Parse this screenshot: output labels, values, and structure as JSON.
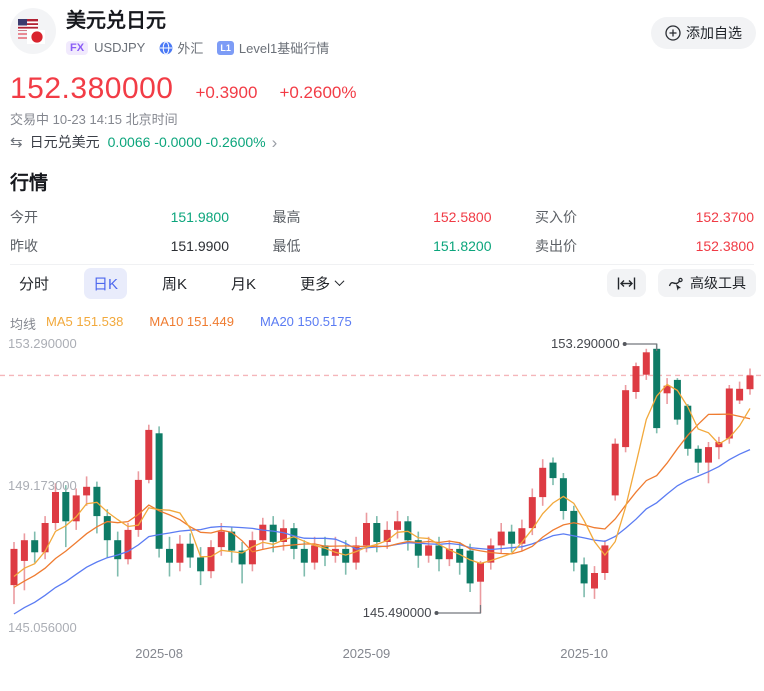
{
  "header": {
    "title": "美元兑日元",
    "fx_badge": "FX",
    "symbol": "USDJPY",
    "market": "外汇",
    "l1_badge": "L1",
    "level_label": "Level1基础行情",
    "add_button": "添加自选"
  },
  "price": {
    "last": "152.380000",
    "change": "+0.3900",
    "change_pct": "+0.2600%",
    "status": "交易中 10-23 14:15 北京时间"
  },
  "inverse": {
    "name": "日元兑美元",
    "values": "0.0066 -0.0000 -0.2600%",
    "chevron": "›",
    "swap_icon": "⇆"
  },
  "quote": {
    "section_title": "行情",
    "items": [
      {
        "label": "今开",
        "value": "151.9800",
        "tone": "green"
      },
      {
        "label": "最高",
        "value": "152.5800",
        "tone": "red"
      },
      {
        "label": "买入价",
        "value": "152.3700",
        "tone": "red"
      },
      {
        "label": "昨收",
        "value": "151.9900",
        "tone": "dark"
      },
      {
        "label": "最低",
        "value": "151.8200",
        "tone": "green"
      },
      {
        "label": "卖出价",
        "value": "152.3800",
        "tone": "red"
      }
    ]
  },
  "tabs": [
    {
      "label": "分时",
      "active": false
    },
    {
      "label": "日K",
      "active": true
    },
    {
      "label": "周K",
      "active": false
    },
    {
      "label": "月K",
      "active": false
    },
    {
      "label": "更多",
      "active": false
    }
  ],
  "tools": {
    "advanced": "高级工具"
  },
  "ma_legend": {
    "title": "均线",
    "ma5": "MA5 151.538",
    "ma10": "MA10 151.449",
    "ma20": "MA20 150.5175"
  },
  "chart_data": {
    "type": "candlestick",
    "current_price": 152.38,
    "y_axis": [
      {
        "price": 153.29,
        "label": "153.290000"
      },
      {
        "price": 149.173,
        "label": "149.173000"
      },
      {
        "price": 145.056,
        "label": "145.056000"
      }
    ],
    "x_axis": [
      {
        "index": 14,
        "label": "2025-08"
      },
      {
        "index": 34,
        "label": "2025-09"
      },
      {
        "index": 55,
        "label": "2025-10"
      }
    ],
    "annotations": [
      {
        "label": "153.290000",
        "index": 62,
        "price": 153.29,
        "anchor": "high"
      },
      {
        "label": "145.490000",
        "index": 45,
        "price": 145.49,
        "anchor": "low"
      }
    ],
    "colors": {
      "up": "#dd3b43",
      "up_wick": "#eb9ba0",
      "down": "#0e7b66",
      "down_wick": "#7fbcae",
      "ma5": "#f2a93c",
      "ma10": "#ef7c31",
      "ma20": "#5b7cf3",
      "price_line": "#f5b6ba",
      "connector": "#75787e"
    },
    "pre_closes": [
      143.9,
      144.2,
      144.0,
      144.5,
      144.8,
      144.6,
      145.0,
      145.3,
      145.1,
      145.5,
      145.8,
      145.6,
      146.0,
      146.2,
      146.0,
      146.4,
      146.6,
      146.3,
      146.1
    ],
    "candles": [
      [
        146.3,
        147.35,
        147.55,
        145.75
      ],
      [
        147.0,
        147.6,
        147.8,
        146.15
      ],
      [
        147.6,
        147.25,
        147.85,
        146.95
      ],
      [
        147.25,
        148.1,
        148.3,
        147.05
      ],
      [
        148.1,
        149.0,
        149.25,
        147.9
      ],
      [
        149.0,
        148.15,
        149.2,
        147.4
      ],
      [
        148.15,
        148.9,
        149.1,
        147.9
      ],
      [
        148.9,
        149.15,
        149.45,
        148.6
      ],
      [
        149.15,
        148.3,
        149.3,
        147.8
      ],
      [
        148.3,
        147.6,
        148.5,
        147.1
      ],
      [
        147.6,
        147.05,
        147.85,
        146.55
      ],
      [
        147.05,
        147.9,
        148.1,
        146.9
      ],
      [
        147.9,
        149.35,
        149.6,
        147.7
      ],
      [
        149.35,
        150.8,
        150.95,
        149.25
      ],
      [
        150.7,
        147.35,
        150.9,
        147.1
      ],
      [
        147.35,
        146.95,
        147.7,
        146.55
      ],
      [
        146.95,
        147.5,
        147.75,
        146.7
      ],
      [
        147.5,
        147.1,
        147.8,
        146.8
      ],
      [
        147.1,
        146.7,
        147.4,
        146.3
      ],
      [
        146.7,
        147.4,
        147.6,
        146.5
      ],
      [
        147.4,
        147.85,
        148.1,
        147.15
      ],
      [
        147.85,
        147.3,
        148.0,
        146.95
      ],
      [
        147.3,
        146.9,
        147.55,
        146.35
      ],
      [
        146.9,
        147.6,
        147.85,
        146.7
      ],
      [
        147.6,
        148.05,
        148.25,
        147.35
      ],
      [
        148.05,
        147.55,
        148.3,
        147.25
      ],
      [
        147.55,
        147.95,
        148.2,
        147.3
      ],
      [
        147.95,
        147.35,
        148.1,
        147.05
      ],
      [
        147.35,
        146.95,
        147.6,
        146.55
      ],
      [
        146.95,
        147.45,
        147.7,
        146.75
      ],
      [
        147.45,
        147.15,
        147.7,
        146.85
      ],
      [
        147.15,
        147.35,
        147.7,
        146.95
      ],
      [
        147.35,
        146.95,
        147.6,
        146.6
      ],
      [
        146.95,
        147.45,
        147.7,
        146.75
      ],
      [
        147.45,
        148.1,
        148.4,
        147.25
      ],
      [
        148.1,
        147.55,
        148.3,
        147.25
      ],
      [
        147.55,
        147.9,
        148.15,
        147.35
      ],
      [
        147.9,
        148.15,
        148.45,
        147.65
      ],
      [
        148.15,
        147.6,
        148.3,
        147.3
      ],
      [
        147.6,
        147.15,
        147.85,
        146.8
      ],
      [
        147.15,
        147.45,
        147.7,
        146.95
      ],
      [
        147.45,
        147.05,
        147.7,
        146.7
      ],
      [
        147.05,
        147.35,
        147.6,
        146.85
      ],
      [
        147.35,
        146.95,
        147.55,
        146.6
      ],
      [
        147.3,
        146.35,
        147.5,
        146.1
      ],
      [
        146.4,
        146.95,
        147.0,
        145.49
      ],
      [
        146.95,
        147.45,
        147.65,
        146.75
      ],
      [
        147.45,
        147.85,
        148.1,
        147.2
      ],
      [
        147.85,
        147.5,
        148.05,
        147.25
      ],
      [
        147.5,
        147.95,
        148.2,
        147.3
      ],
      [
        147.95,
        148.85,
        149.1,
        147.75
      ],
      [
        148.85,
        149.7,
        149.95,
        148.6
      ],
      [
        149.85,
        149.4,
        150.0,
        149.2
      ],
      [
        149.4,
        148.45,
        149.55,
        148.2
      ],
      [
        148.45,
        146.95,
        148.6,
        146.7
      ],
      [
        146.9,
        146.35,
        147.1,
        145.95
      ],
      [
        146.2,
        146.65,
        146.85,
        145.9
      ],
      [
        146.65,
        147.45,
        147.6,
        146.45
      ],
      [
        148.9,
        150.4,
        150.55,
        148.75
      ],
      [
        150.3,
        151.95,
        152.1,
        150.15
      ],
      [
        151.9,
        152.65,
        152.75,
        151.7
      ],
      [
        152.4,
        153.05,
        153.15,
        152.25
      ],
      [
        153.15,
        150.85,
        153.29,
        150.7
      ],
      [
        151.86,
        152.08,
        152.3,
        151.55
      ],
      [
        152.25,
        151.1,
        152.3,
        150.95
      ],
      [
        151.5,
        150.25,
        151.55,
        150.05
      ],
      [
        150.25,
        149.85,
        150.35,
        149.55
      ],
      [
        149.85,
        150.3,
        150.45,
        149.25
      ],
      [
        150.3,
        150.45,
        150.6,
        149.95
      ],
      [
        150.55,
        152.0,
        152.1,
        150.4
      ],
      [
        151.65,
        151.99,
        152.2,
        151.55
      ],
      [
        151.98,
        152.38,
        152.58,
        151.82
      ]
    ]
  }
}
